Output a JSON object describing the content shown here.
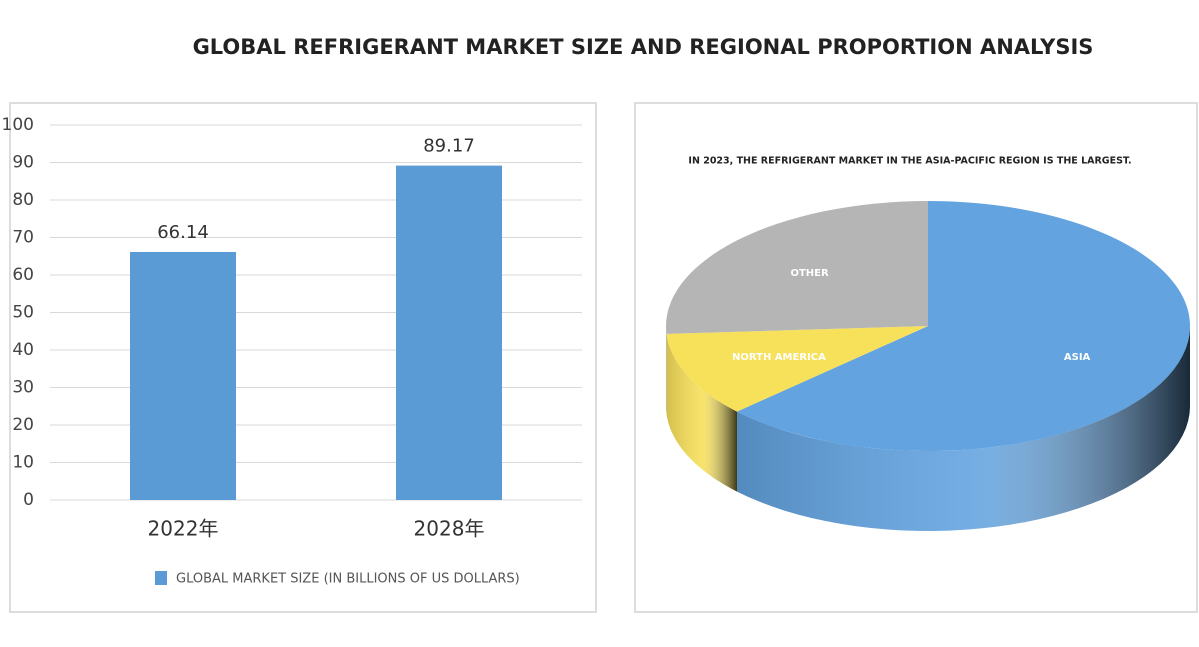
{
  "title": "GLOBAL REFRIGERANT MARKET SIZE AND REGIONAL PROPORTION ANALYSIS",
  "chart_data": [
    {
      "type": "bar",
      "categories": [
        "2022年",
        "2028年"
      ],
      "series": [
        {
          "name": "GLOBAL MARKET SIZE (IN BILLIONS OF US DOLLARS)",
          "color": "#5b9bd5",
          "values": [
            66.14,
            89.17
          ]
        }
      ],
      "ylim": [
        0,
        100
      ],
      "yticks": [
        0,
        10,
        20,
        30,
        40,
        50,
        60,
        70,
        80,
        90,
        100
      ],
      "grid": true,
      "legend": "bottom"
    },
    {
      "type": "pie",
      "title": "IN 2023, THE REFRIGERANT MARKET IN THE ASIA-PACIFIC REGION IS THE LARGEST.",
      "categories": [
        "ASIA",
        "NORTH AMERICA",
        "OTHER"
      ],
      "values": [
        63,
        11,
        26
      ],
      "colors": [
        "#62a3e0",
        "#f7e05a",
        "#b5b5b5"
      ]
    }
  ]
}
